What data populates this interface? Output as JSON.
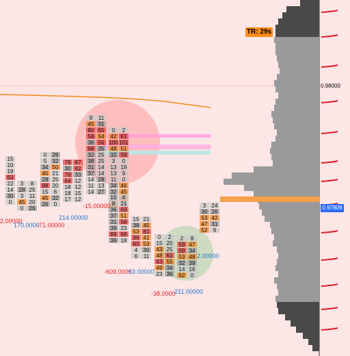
{
  "header": {
    "timer_label": "TR: 29s"
  },
  "price_axis": {
    "level_label": "0.98000",
    "current_label": "0.97809"
  },
  "annotations": {
    "a1": "2.00000",
    "a2": "170.0000",
    "a3": "-71.00000",
    "a4": "214.00000",
    "a5": "-15.00000",
    "a6": "-609.0000",
    "a7": "53.00000",
    "a8": "-38.0000",
    "a9": "211.00000",
    "a10": "2.00000"
  },
  "colors": {
    "background": "#fde6e6",
    "profile": "#9a9a9a",
    "poc": "#f5a04a",
    "accent_orange": "#ff8c1a",
    "price_blue": "#2b6cf6"
  },
  "footprint_cols": [
    {
      "cells": [
        [
          "15",
          ""
        ],
        [
          "10",
          ""
        ],
        [
          "19",
          ""
        ],
        [
          "63",
          ""
        ],
        [
          "22",
          ""
        ],
        [
          "14",
          ""
        ],
        [
          "30",
          ""
        ],
        [
          "0",
          ""
        ]
      ]
    },
    {
      "cells": [
        [
          "3",
          "8"
        ],
        [
          "28",
          "25"
        ],
        [
          "3",
          "11"
        ],
        [
          "45",
          "20"
        ],
        [
          "0",
          "26"
        ]
      ]
    },
    {
      "cells": [
        [
          "0",
          "26"
        ],
        [
          "5",
          "32"
        ],
        [
          "34",
          "50"
        ],
        [
          "45",
          "21"
        ],
        [
          "28",
          "25"
        ],
        [
          "88",
          "20"
        ],
        [
          "15",
          "6"
        ],
        [
          "45",
          "32"
        ],
        [
          "26",
          "0"
        ]
      ]
    },
    {
      "cells": [
        [
          "78",
          "87"
        ],
        [
          "30",
          "62"
        ],
        [
          "78",
          "33"
        ],
        [
          "64",
          "12"
        ],
        [
          "18",
          "12"
        ],
        [
          "18",
          "15"
        ],
        [
          "17",
          "12"
        ]
      ]
    },
    {
      "cells": [
        [
          "9",
          "11"
        ],
        [
          "45",
          "31"
        ],
        [
          "80",
          "65"
        ],
        [
          "58",
          "54"
        ],
        [
          "36",
          "56"
        ],
        [
          "68",
          "35"
        ],
        [
          "32",
          "25"
        ],
        [
          "38",
          "25"
        ],
        [
          "31",
          "14"
        ],
        [
          "37",
          "14"
        ],
        [
          "14",
          "28"
        ],
        [
          "11",
          "13"
        ],
        [
          "14",
          "27"
        ]
      ]
    },
    {
      "cells": [
        [
          "0",
          "2"
        ],
        [
          "42",
          "61"
        ],
        [
          "100",
          "101"
        ],
        [
          "48",
          "51"
        ],
        [
          "32",
          "59"
        ],
        [
          "3",
          "0"
        ],
        [
          "13",
          "19"
        ],
        [
          "13",
          "9"
        ],
        [
          "11",
          "0"
        ],
        [
          "34",
          "46"
        ],
        [
          "32",
          "45"
        ],
        [
          "40",
          "47"
        ],
        [
          "44",
          "16"
        ]
      ]
    },
    {
      "cells": [
        [
          "15",
          "4"
        ],
        [
          "8",
          "21"
        ],
        [
          "36",
          "69"
        ],
        [
          "37",
          "51"
        ],
        [
          "31",
          "56"
        ],
        [
          "39",
          "23"
        ],
        [
          "89",
          "68"
        ],
        [
          "39",
          "18"
        ]
      ]
    },
    {
      "cells": [
        [
          "15",
          "21"
        ],
        [
          "38",
          "45"
        ],
        [
          "53",
          "81"
        ],
        [
          "96",
          "41"
        ],
        [
          "83",
          "53"
        ],
        [
          "4",
          "30"
        ],
        [
          "6",
          "11"
        ]
      ]
    },
    {
      "cells": [
        [
          "0",
          "2"
        ],
        [
          "15",
          "20"
        ],
        [
          "43",
          "25"
        ],
        [
          "48",
          "61"
        ],
        [
          "63",
          "55"
        ],
        [
          "49",
          "34"
        ],
        [
          "23",
          "36"
        ]
      ]
    },
    {
      "cells": [
        [
          "2",
          "8"
        ],
        [
          "59",
          "47"
        ],
        [
          "59",
          "34"
        ],
        [
          "53",
          "48"
        ],
        [
          "32",
          "39"
        ],
        [
          "14",
          "16"
        ],
        [
          "52",
          "0"
        ]
      ]
    },
    {
      "cells": [
        [
          "3",
          "24"
        ],
        [
          "30",
          "26"
        ],
        [
          "53",
          "42"
        ],
        [
          "47",
          "31"
        ],
        [
          "52",
          "9"
        ]
      ]
    }
  ]
}
